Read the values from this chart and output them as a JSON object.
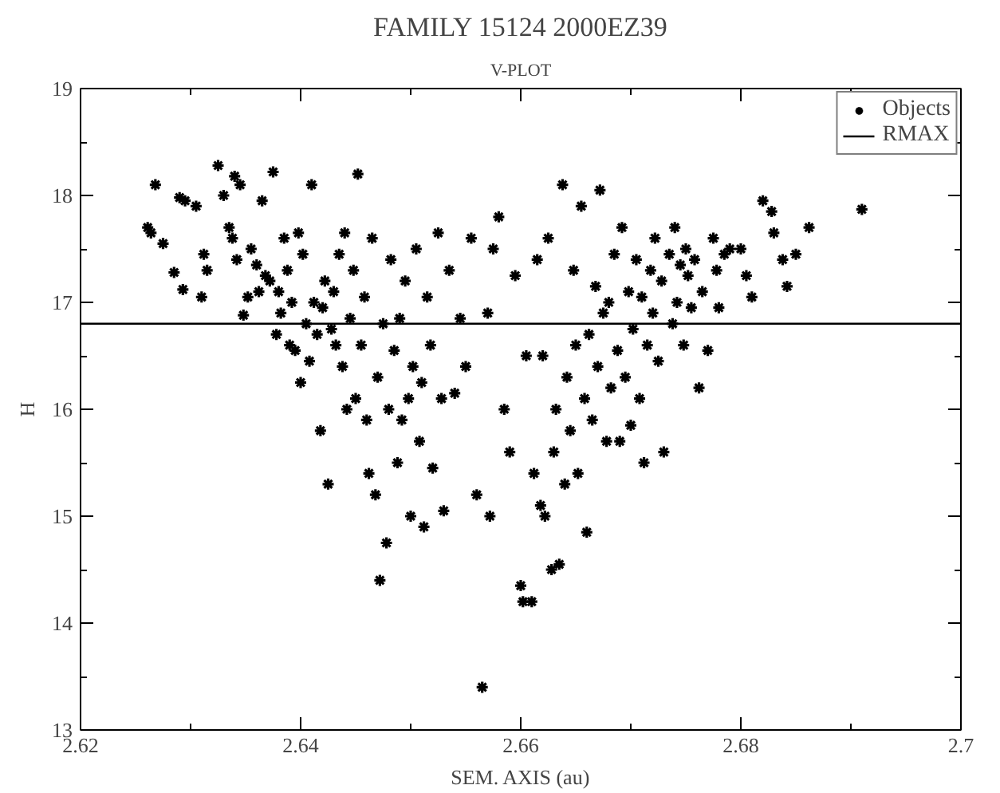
{
  "chart_data": {
    "type": "scatter",
    "title": "FAMILY 15124 2000EZ39",
    "subtitle": "V-PLOT",
    "xlabel": "SEM. AXIS (au)",
    "ylabel": "H",
    "xlim": [
      2.62,
      2.7
    ],
    "ylim": [
      13,
      19
    ],
    "xticks": [
      2.62,
      2.64,
      2.66,
      2.68,
      2.7
    ],
    "yticks": [
      13,
      14,
      15,
      16,
      17,
      18,
      19
    ],
    "grid": false,
    "legend": "top right",
    "marker": "cross",
    "series": [
      {
        "name": "Objects",
        "color": "#000000",
        "x": [
          2.6261,
          2.6264,
          2.6268,
          2.6275,
          2.6285,
          2.629,
          2.6293,
          2.6295,
          2.6305,
          2.631,
          2.6312,
          2.6315,
          2.6325,
          2.633,
          2.6335,
          2.6338,
          2.634,
          2.6342,
          2.6345,
          2.6348,
          2.6352,
          2.6355,
          2.636,
          2.6362,
          2.6365,
          2.6368,
          2.6372,
          2.6375,
          2.6378,
          2.638,
          2.6382,
          2.6385,
          2.6388,
          2.639,
          2.6392,
          2.6395,
          2.6398,
          2.64,
          2.6402,
          2.6405,
          2.6408,
          2.641,
          2.6412,
          2.6415,
          2.6418,
          2.642,
          2.6422,
          2.6425,
          2.6428,
          2.643,
          2.6432,
          2.6435,
          2.6438,
          2.644,
          2.6442,
          2.6445,
          2.6448,
          2.645,
          2.6452,
          2.6455,
          2.6458,
          2.646,
          2.6462,
          2.6465,
          2.6468,
          2.647,
          2.6472,
          2.6475,
          2.6478,
          2.648,
          2.6482,
          2.6485,
          2.6488,
          2.649,
          2.6492,
          2.6495,
          2.6498,
          2.65,
          2.6502,
          2.6505,
          2.6508,
          2.651,
          2.6512,
          2.6515,
          2.6518,
          2.652,
          2.6525,
          2.6528,
          2.653,
          2.6535,
          2.654,
          2.6545,
          2.655,
          2.6555,
          2.656,
          2.6565,
          2.657,
          2.6572,
          2.6575,
          2.658,
          2.6585,
          2.659,
          2.6595,
          2.66,
          2.6602,
          2.6605,
          2.661,
          2.6612,
          2.6615,
          2.6618,
          2.662,
          2.6622,
          2.6625,
          2.6628,
          2.663,
          2.6632,
          2.6635,
          2.6638,
          2.664,
          2.6642,
          2.6645,
          2.6648,
          2.665,
          2.6652,
          2.6655,
          2.6658,
          2.666,
          2.6662,
          2.6665,
          2.6668,
          2.667,
          2.6672,
          2.6675,
          2.6678,
          2.668,
          2.6682,
          2.6685,
          2.6688,
          2.669,
          2.6692,
          2.6695,
          2.6698,
          2.67,
          2.6702,
          2.6705,
          2.6708,
          2.671,
          2.6712,
          2.6715,
          2.6718,
          2.672,
          2.6722,
          2.6725,
          2.6728,
          2.673,
          2.6735,
          2.6738,
          2.674,
          2.6742,
          2.6745,
          2.6748,
          2.675,
          2.6752,
          2.6755,
          2.6758,
          2.6762,
          2.6765,
          2.677,
          2.6775,
          2.6778,
          2.678,
          2.6785,
          2.679,
          2.68,
          2.6805,
          2.681,
          2.682,
          2.6828,
          2.683,
          2.6838,
          2.6842,
          2.685,
          2.6862,
          2.691
        ],
        "values": [
          17.7,
          17.65,
          18.1,
          17.55,
          17.28,
          17.98,
          17.12,
          17.95,
          17.9,
          17.05,
          17.45,
          17.3,
          18.28,
          18.0,
          17.7,
          17.6,
          18.18,
          17.4,
          18.1,
          16.88,
          17.05,
          17.5,
          17.35,
          17.1,
          17.95,
          17.25,
          17.2,
          18.22,
          16.7,
          17.1,
          16.9,
          17.6,
          17.3,
          16.6,
          17.0,
          16.55,
          17.65,
          16.25,
          17.45,
          16.8,
          16.45,
          18.1,
          17.0,
          16.7,
          15.8,
          16.95,
          17.2,
          15.3,
          16.75,
          17.1,
          16.6,
          17.45,
          16.4,
          17.65,
          16.0,
          16.85,
          17.3,
          16.1,
          18.2,
          16.6,
          17.05,
          15.9,
          15.4,
          17.6,
          15.2,
          16.3,
          14.4,
          16.8,
          14.75,
          16.0,
          17.4,
          16.55,
          15.5,
          16.85,
          15.9,
          17.2,
          16.1,
          15.0,
          16.4,
          17.5,
          15.7,
          16.25,
          14.9,
          17.05,
          16.6,
          15.45,
          17.65,
          16.1,
          15.05,
          17.3,
          16.15,
          16.85,
          16.4,
          17.6,
          15.2,
          13.4,
          16.9,
          15.0,
          17.5,
          17.8,
          16.0,
          15.6,
          17.25,
          14.35,
          14.2,
          16.5,
          14.2,
          15.4,
          17.4,
          15.1,
          16.5,
          15.0,
          17.6,
          14.5,
          15.6,
          16.0,
          14.55,
          18.1,
          15.3,
          16.3,
          15.8,
          17.3,
          16.6,
          15.4,
          17.9,
          16.1,
          14.85,
          16.7,
          15.9,
          17.15,
          16.4,
          18.05,
          16.9,
          15.7,
          17.0,
          16.2,
          17.45,
          16.55,
          15.7,
          17.7,
          16.3,
          17.1,
          15.85,
          16.75,
          17.4,
          16.1,
          17.05,
          15.5,
          16.6,
          17.3,
          16.9,
          17.6,
          16.45,
          17.2,
          15.6,
          17.45,
          16.8,
          17.7,
          17.0,
          17.35,
          16.6,
          17.5,
          17.25,
          16.95,
          17.4,
          16.2,
          17.1,
          16.55,
          17.6,
          17.3,
          16.95,
          17.45,
          17.5,
          17.5,
          17.25,
          17.05,
          17.95,
          17.85,
          17.65,
          17.4,
          17.15,
          17.45,
          17.7,
          17.87
        ]
      }
    ],
    "ref_lines": [
      {
        "axis": "y",
        "value": 16.8,
        "label": "RMAX",
        "color": "#000000",
        "line_style": "solid"
      }
    ]
  }
}
